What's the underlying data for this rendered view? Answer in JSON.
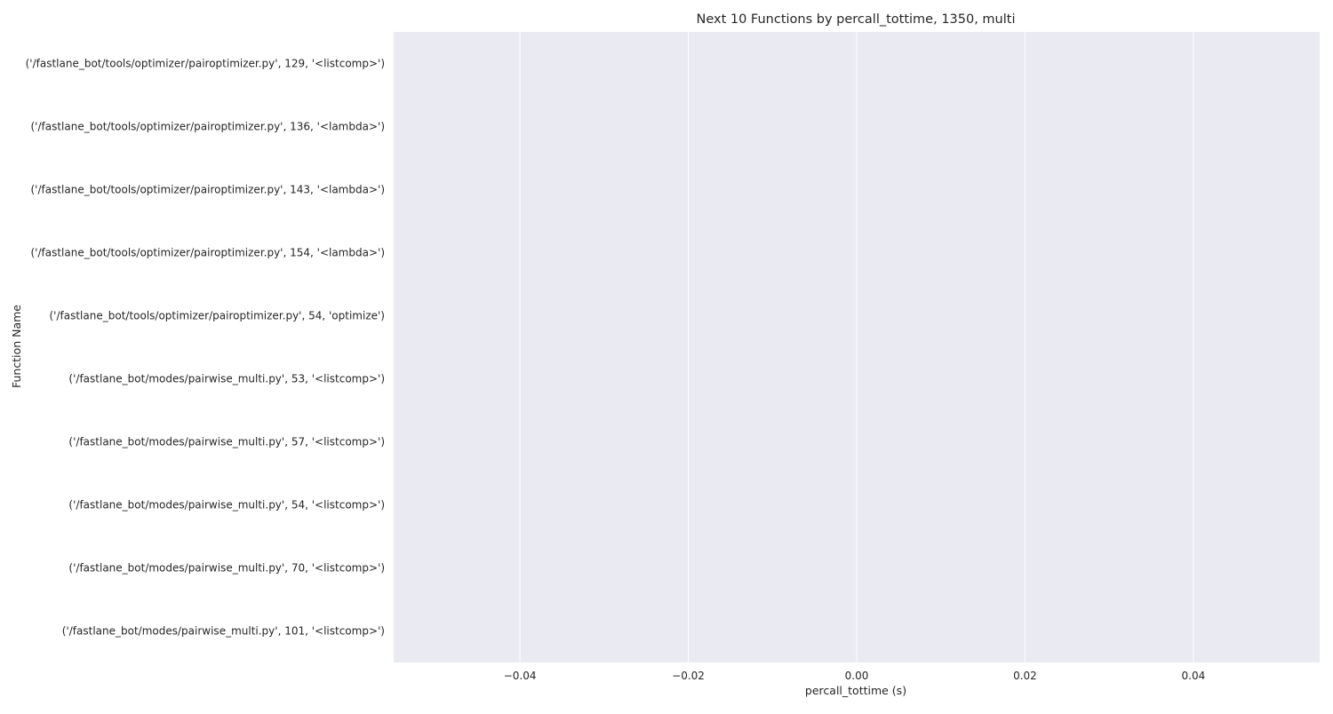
{
  "chart_data": {
    "type": "bar",
    "orientation": "horizontal",
    "title": "Next 10 Functions by percall_tottime, 1350, multi",
    "xlabel": "percall_tottime (s)",
    "ylabel": "Function Name",
    "xlim": [
      -0.055,
      0.055
    ],
    "xticks": [
      -0.04,
      -0.02,
      0.0,
      0.02,
      0.04
    ],
    "xtick_labels": [
      "−0.04",
      "−0.02",
      "0.00",
      "0.02",
      "0.04"
    ],
    "grid": true,
    "legend": "none",
    "colors": {
      "plot_background": "#eaeaf2",
      "grid": "#ffffff",
      "text": "#262626"
    },
    "categories": [
      "('/fastlane_bot/tools/optimizer/pairoptimizer.py', 129, '<listcomp>')",
      "('/fastlane_bot/tools/optimizer/pairoptimizer.py', 136, '<lambda>')",
      "('/fastlane_bot/tools/optimizer/pairoptimizer.py', 143, '<lambda>')",
      "('/fastlane_bot/tools/optimizer/pairoptimizer.py', 154, '<lambda>')",
      "('/fastlane_bot/tools/optimizer/pairoptimizer.py', 54, 'optimize')",
      "('/fastlane_bot/modes/pairwise_multi.py', 53, '<listcomp>')",
      "('/fastlane_bot/modes/pairwise_multi.py', 57, '<listcomp>')",
      "('/fastlane_bot/modes/pairwise_multi.py', 54, '<listcomp>')",
      "('/fastlane_bot/modes/pairwise_multi.py', 70, '<listcomp>')",
      "('/fastlane_bot/modes/pairwise_multi.py', 101, '<listcomp>')"
    ],
    "values": [
      0,
      0,
      0,
      0,
      0,
      0,
      0,
      0,
      0,
      0
    ]
  }
}
